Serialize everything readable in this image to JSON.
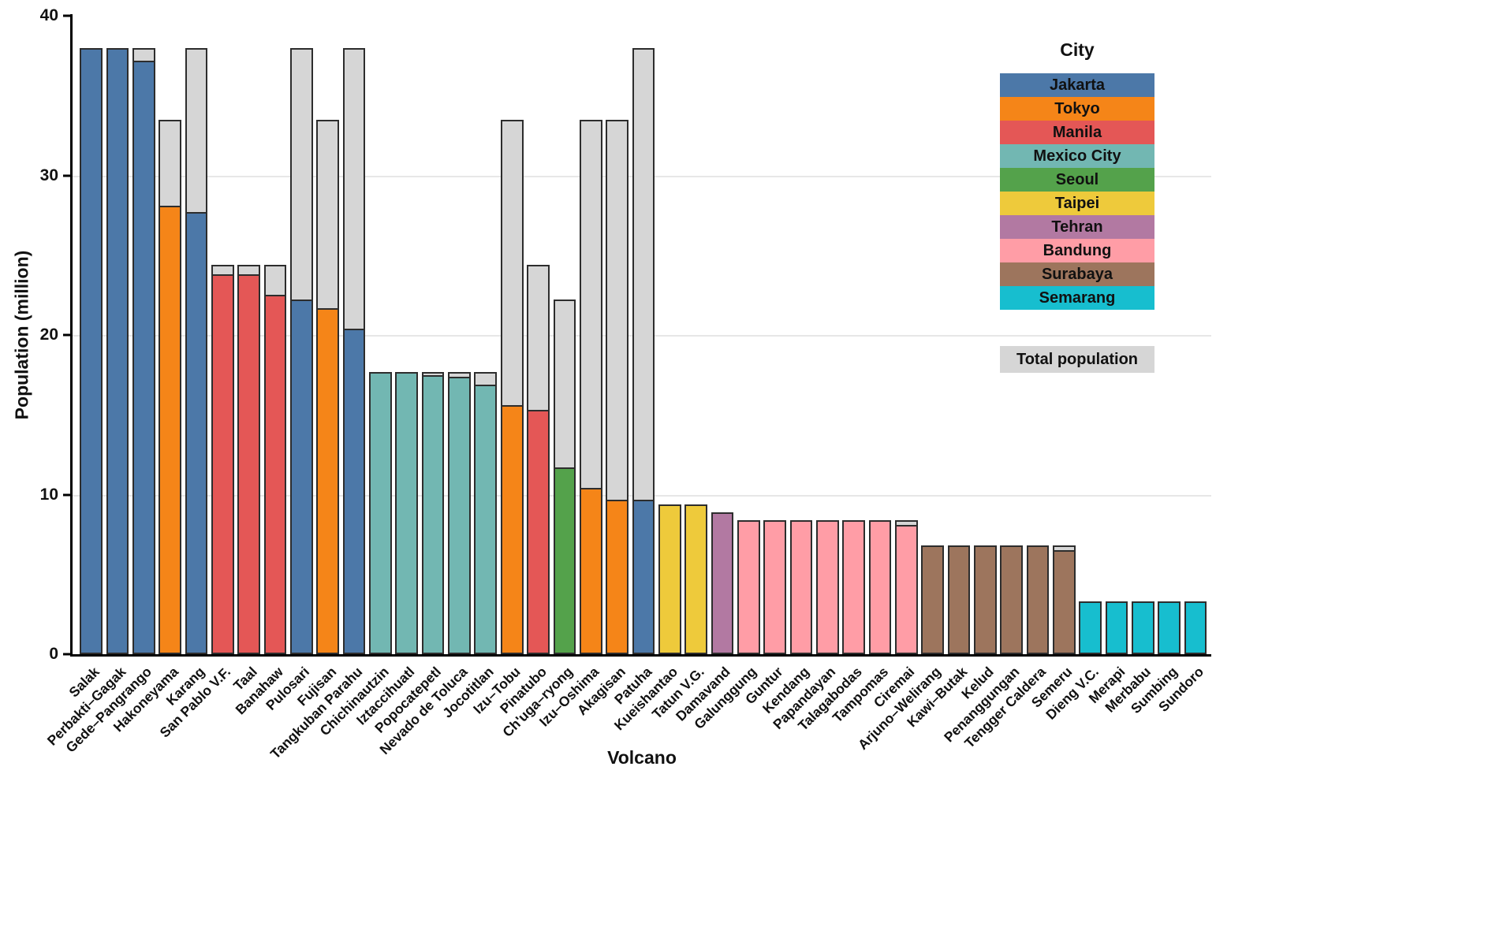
{
  "chart_data": {
    "type": "bar",
    "title": "",
    "xlabel": "Volcano",
    "ylabel": "Population (million)",
    "ylim": [
      0,
      40
    ],
    "yticks": [
      0,
      10,
      20,
      30,
      40
    ],
    "gridlines": [
      10,
      20,
      30
    ],
    "grid": "horizontal",
    "legend_title": "City",
    "legend_position": "top-right",
    "total_label": "Total population",
    "total_color": "#d6d6d6",
    "bar_border_color": "#2d2d2d",
    "legend": [
      {
        "label": "Jakarta",
        "color": "#4c78a8"
      },
      {
        "label": "Tokyo",
        "color": "#f58518"
      },
      {
        "label": "Manila",
        "color": "#e45756"
      },
      {
        "label": "Mexico City",
        "color": "#72b7b2"
      },
      {
        "label": "Seoul",
        "color": "#54a24b"
      },
      {
        "label": "Taipei",
        "color": "#eeca3b"
      },
      {
        "label": "Tehran",
        "color": "#b279a2"
      },
      {
        "label": "Bandung",
        "color": "#ff9da6"
      },
      {
        "label": "Surabaya",
        "color": "#9d755d"
      },
      {
        "label": "Semarang",
        "color": "#17becf"
      }
    ],
    "bars": [
      {
        "volcano": "Salak",
        "city": "Jakarta",
        "city_population": 38.0,
        "total_population": 38.0
      },
      {
        "volcano": "Perbakti–Gagak",
        "city": "Jakarta",
        "city_population": 38.0,
        "total_population": 38.0
      },
      {
        "volcano": "Gede–Pangrango",
        "city": "Jakarta",
        "city_population": 37.2,
        "total_population": 38.0
      },
      {
        "volcano": "Hakoneyama",
        "city": "Tokyo",
        "city_population": 28.1,
        "total_population": 33.5
      },
      {
        "volcano": "Karang",
        "city": "Jakarta",
        "city_population": 27.7,
        "total_population": 38.0
      },
      {
        "volcano": "San Pablo V.F.",
        "city": "Manila",
        "city_population": 23.8,
        "total_population": 24.4
      },
      {
        "volcano": "Taal",
        "city": "Manila",
        "city_population": 23.8,
        "total_population": 24.4
      },
      {
        "volcano": "Banahaw",
        "city": "Manila",
        "city_population": 22.5,
        "total_population": 24.4
      },
      {
        "volcano": "Pulosari",
        "city": "Jakarta",
        "city_population": 22.2,
        "total_population": 38.0
      },
      {
        "volcano": "Fujisan",
        "city": "Tokyo",
        "city_population": 21.7,
        "total_population": 33.5
      },
      {
        "volcano": "Tangkuban Parahu",
        "city": "Jakarta",
        "city_population": 20.4,
        "total_population": 38.0
      },
      {
        "volcano": "Chichinautzin",
        "city": "Mexico City",
        "city_population": 17.7,
        "total_population": 17.7
      },
      {
        "volcano": "Iztaccihuatl",
        "city": "Mexico City",
        "city_population": 17.7,
        "total_population": 17.7
      },
      {
        "volcano": "Popocatepetl",
        "city": "Mexico City",
        "city_population": 17.5,
        "total_population": 17.7
      },
      {
        "volcano": "Nevado de Toluca",
        "city": "Mexico City",
        "city_population": 17.4,
        "total_population": 17.7
      },
      {
        "volcano": "Jocotitlan",
        "city": "Mexico City",
        "city_population": 16.9,
        "total_population": 17.7
      },
      {
        "volcano": "Izu–Tobu",
        "city": "Tokyo",
        "city_population": 15.6,
        "total_population": 33.5
      },
      {
        "volcano": "Pinatubo",
        "city": "Manila",
        "city_population": 15.3,
        "total_population": 24.4
      },
      {
        "volcano": "Ch'uga–ryong",
        "city": "Seoul",
        "city_population": 11.7,
        "total_population": 22.2
      },
      {
        "volcano": "Izu–Oshima",
        "city": "Tokyo",
        "city_population": 10.4,
        "total_population": 33.5
      },
      {
        "volcano": "Akagisan",
        "city": "Tokyo",
        "city_population": 9.7,
        "total_population": 33.5
      },
      {
        "volcano": "Patuha",
        "city": "Jakarta",
        "city_population": 9.7,
        "total_population": 38.0
      },
      {
        "volcano": "Kueishantao",
        "city": "Taipei",
        "city_population": 9.4,
        "total_population": 9.4
      },
      {
        "volcano": "Tatun V.G.",
        "city": "Taipei",
        "city_population": 9.4,
        "total_population": 9.4
      },
      {
        "volcano": "Damavand",
        "city": "Tehran",
        "city_population": 8.9,
        "total_population": 8.9
      },
      {
        "volcano": "Galunggung",
        "city": "Bandung",
        "city_population": 8.4,
        "total_population": 8.4
      },
      {
        "volcano": "Guntur",
        "city": "Bandung",
        "city_population": 8.4,
        "total_population": 8.4
      },
      {
        "volcano": "Kendang",
        "city": "Bandung",
        "city_population": 8.4,
        "total_population": 8.4
      },
      {
        "volcano": "Papandayan",
        "city": "Bandung",
        "city_population": 8.4,
        "total_population": 8.4
      },
      {
        "volcano": "Talagabodas",
        "city": "Bandung",
        "city_population": 8.4,
        "total_population": 8.4
      },
      {
        "volcano": "Tampomas",
        "city": "Bandung",
        "city_population": 8.4,
        "total_population": 8.4
      },
      {
        "volcano": "Ciremai",
        "city": "Bandung",
        "city_population": 8.1,
        "total_population": 8.4
      },
      {
        "volcano": "Arjuno–Welirang",
        "city": "Surabaya",
        "city_population": 6.8,
        "total_population": 6.8
      },
      {
        "volcano": "Kawi–Butak",
        "city": "Surabaya",
        "city_population": 6.8,
        "total_population": 6.8
      },
      {
        "volcano": "Kelud",
        "city": "Surabaya",
        "city_population": 6.8,
        "total_population": 6.8
      },
      {
        "volcano": "Penanggungan",
        "city": "Surabaya",
        "city_population": 6.8,
        "total_population": 6.8
      },
      {
        "volcano": "Tengger Caldera",
        "city": "Surabaya",
        "city_population": 6.8,
        "total_population": 6.8
      },
      {
        "volcano": "Semeru",
        "city": "Surabaya",
        "city_population": 6.5,
        "total_population": 6.8
      },
      {
        "volcano": "Dieng V.C.",
        "city": "Semarang",
        "city_population": 3.3,
        "total_population": 3.3
      },
      {
        "volcano": "Merapi",
        "city": "Semarang",
        "city_population": 3.3,
        "total_population": 3.3
      },
      {
        "volcano": "Merbabu",
        "city": "Semarang",
        "city_population": 3.3,
        "total_population": 3.3
      },
      {
        "volcano": "Sumbing",
        "city": "Semarang",
        "city_population": 3.3,
        "total_population": 3.3
      },
      {
        "volcano": "Sundoro",
        "city": "Semarang",
        "city_population": 3.3,
        "total_population": 3.3
      }
    ]
  }
}
